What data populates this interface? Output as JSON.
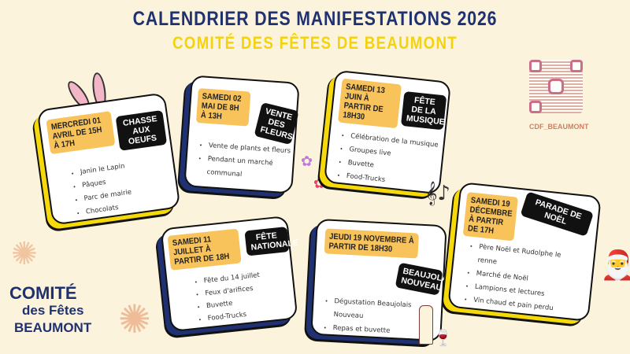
{
  "header": {
    "title": "CALENDRIER DES MANIFESTATIONS 2026",
    "subtitle": "COMITÉ DES FÊTES DE BEAUMONT"
  },
  "events": [
    {
      "date": "MERCREDI 01 AVRIL DE 15H À 17H",
      "name": "CHASSE AUX OEUFS",
      "items": [
        "Janin le Lapin",
        "Pâques",
        "Parc de mairie",
        "Chocolats"
      ],
      "accent": "#f5d90a"
    },
    {
      "date": "SAMEDI 02 MAI DE 8H À 13H",
      "name": "VENTE DES FLEURS",
      "items": [
        "Vente de plants et fleurs",
        "Pendant un marché communal"
      ],
      "accent": "#1f3170"
    },
    {
      "date": "SAMEDI 13 JUIN À PARTIR DE 18H30",
      "name": "FÊTE DE LA MUSIQUE",
      "items": [
        "Célébration de la musique",
        "Groupes live",
        "Buvette",
        "Food-Trucks"
      ],
      "accent": "#f5d90a"
    },
    {
      "date": "SAMEDI 11 JUILLET À PARTIR DE 18H",
      "name": "FÊTE NATIONALE",
      "items": [
        "Fête du 14 juillet",
        "Feux d'arifices",
        "Buvette",
        "Food-Trucks"
      ],
      "accent": "#1f3170"
    },
    {
      "date": "JEUDI 19 NOVEMBRE À PARTIR DE 18H30",
      "name": "BEAUJOLAIS NOUVEAU",
      "items": [
        "Dégustation Beaujolais Nouveau",
        "Repas et buvette"
      ],
      "accent": "#1f3170"
    },
    {
      "date": "SAMEDI 19 DÉCEMBRE À PARTIR DE 17H",
      "name": "PARADE DE NOËL",
      "items": [
        "Père Noël et Rudolphe le renne",
        "Marché de Noël",
        "Lampions et lectures",
        "Vin chaud et pain perdu"
      ],
      "accent": "#f5d90a"
    }
  ],
  "social": {
    "handle": "CDF_BEAUMONT",
    "icon": "instagram-icon"
  },
  "logo": {
    "line1": "COMITÉ",
    "line2": "des Fêtes",
    "line3": "BEAUMONT"
  }
}
